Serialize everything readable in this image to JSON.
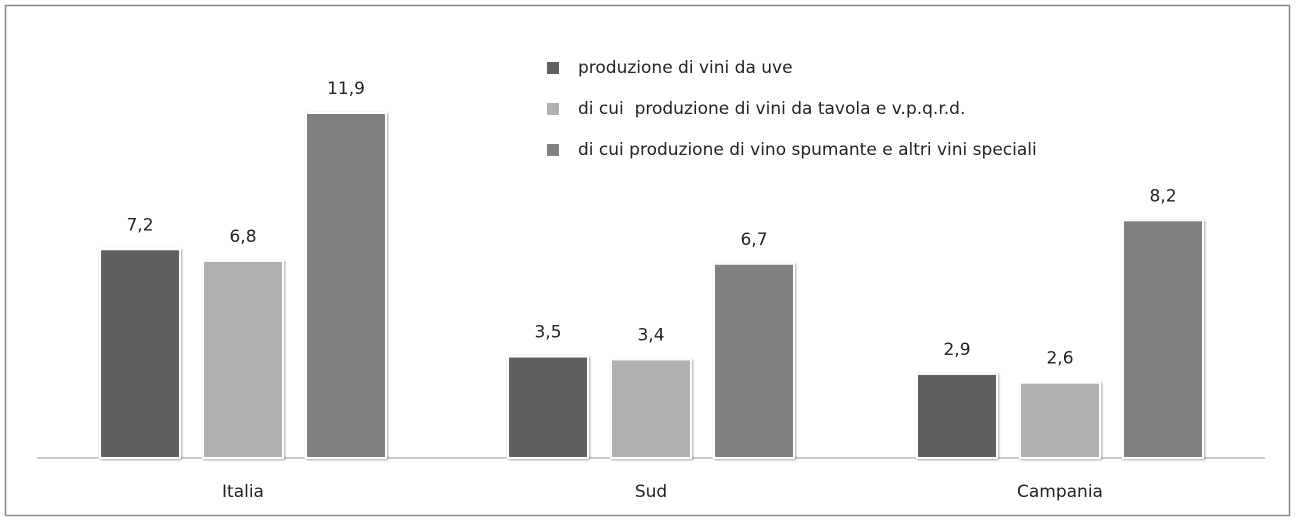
{
  "chart_data": {
    "type": "bar",
    "categories": [
      "Italia",
      "Sud",
      "Campania"
    ],
    "series": [
      {
        "name": "produzione di vini da uve",
        "color": "#606060",
        "values": [
          7.2,
          3.5,
          2.9
        ],
        "value_labels": [
          "7,2",
          "3,5",
          "2,9"
        ]
      },
      {
        "name": "di cui  produzione di vini da tavola e v.p.q.r.d.",
        "color": "#b0b0b0",
        "values": [
          6.8,
          3.4,
          2.6
        ],
        "value_labels": [
          "6,8",
          "3,4",
          "2,6"
        ]
      },
      {
        "name": "di cui produzione di vino spumante e altri vini speciali",
        "color": "#808080",
        "values": [
          11.9,
          6.7,
          8.2
        ],
        "value_labels": [
          "11,9",
          "6,7",
          "8,2"
        ]
      }
    ],
    "legend": "top-right"
  }
}
